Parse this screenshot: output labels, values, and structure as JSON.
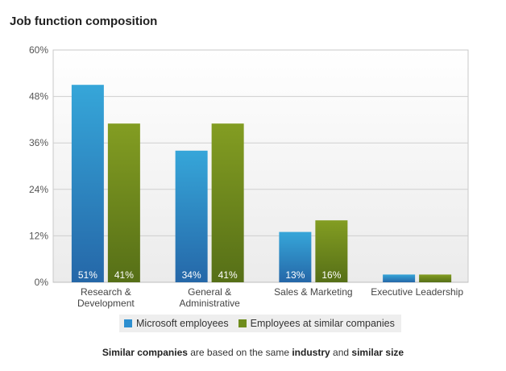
{
  "title": "Job function composition",
  "chart_data": {
    "type": "bar",
    "title": "Job function composition",
    "categories": [
      [
        "Research &",
        "Development"
      ],
      [
        "General &",
        "Administrative"
      ],
      [
        "Sales & Marketing"
      ],
      [
        "Executive Leadership"
      ]
    ],
    "series": [
      {
        "name": "Microsoft employees",
        "values": [
          51,
          34,
          13,
          2
        ],
        "labels": [
          "51%",
          "34%",
          "13%",
          ""
        ],
        "color": "#2d8fd0"
      },
      {
        "name": "Employees at similar companies",
        "values": [
          41,
          41,
          16,
          2
        ],
        "labels": [
          "41%",
          "41%",
          "16%",
          ""
        ],
        "color": "#6e8c1c"
      }
    ],
    "ylim": [
      0,
      60
    ],
    "yticks": [
      "0%",
      "12%",
      "24%",
      "36%",
      "48%",
      "60%"
    ],
    "grid": true,
    "legend": "bottom"
  },
  "footnote": {
    "part1": "Similar companies",
    "part2": " are based on the same ",
    "part3": "industry",
    "part4": " and ",
    "part5": "similar size"
  }
}
